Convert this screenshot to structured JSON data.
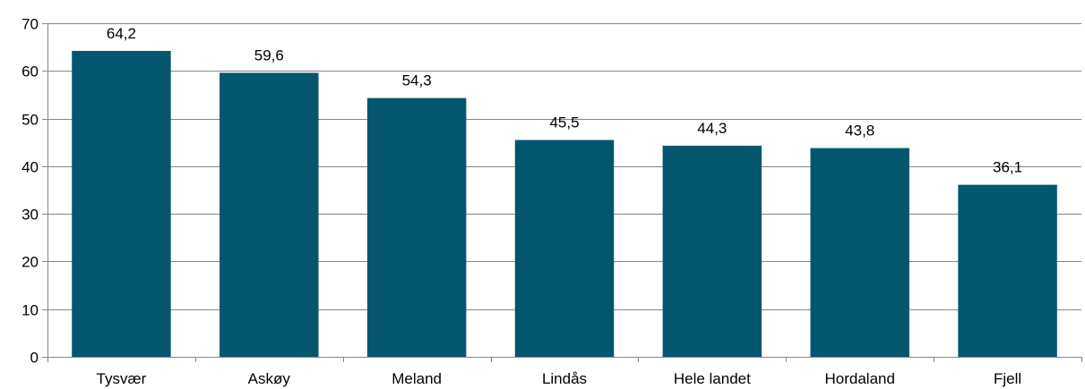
{
  "chart_data": {
    "type": "bar",
    "title": "",
    "xlabel": "",
    "ylabel": "",
    "categories": [
      "Tysvær",
      "Askøy",
      "Meland",
      "Lindås",
      "Hele landet",
      "Hordaland",
      "Fjell"
    ],
    "values": [
      64.2,
      59.6,
      54.3,
      45.5,
      44.3,
      43.8,
      36.1
    ],
    "value_labels": [
      "64,2",
      "59,6",
      "54,3",
      "45,5",
      "44,3",
      "43,8",
      "36,1"
    ],
    "ylim": [
      0,
      70
    ],
    "yticks": [
      0,
      10,
      20,
      30,
      40,
      50,
      60,
      70
    ],
    "grid": true,
    "legend": "none",
    "bar_color": "#04566E",
    "grid_color": "#868686"
  }
}
